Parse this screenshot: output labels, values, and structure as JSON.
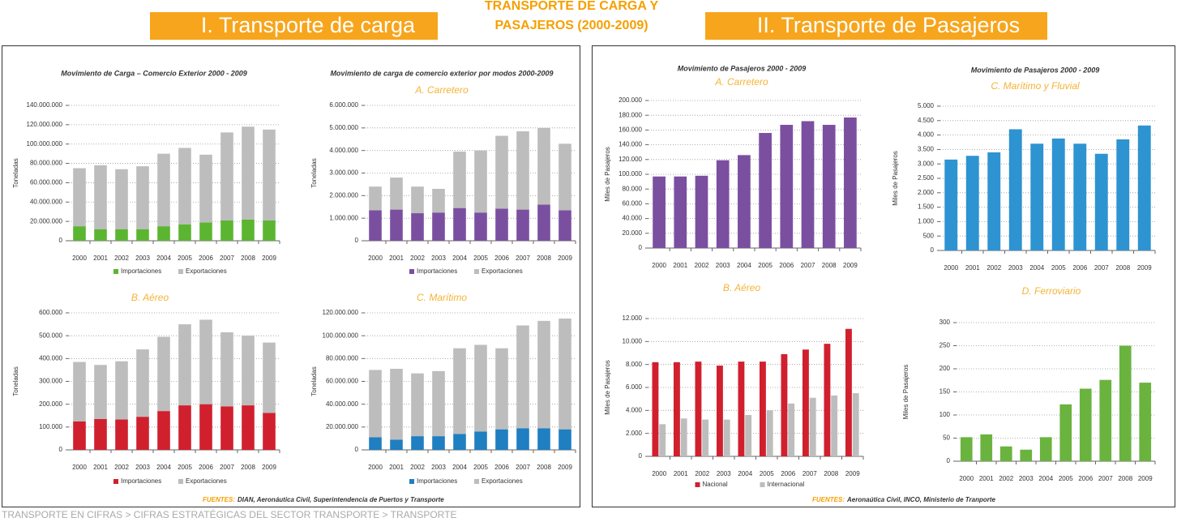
{
  "header": {
    "left": "I. Transporte de carga",
    "center_line1": "TRANSPORTE DE CARGA Y",
    "center_line2": "PASAJEROS (2000-2009)",
    "right": "II. Transporte de Pasajeros"
  },
  "sources": {
    "left": {
      "label": "FUENTES:",
      "text": "DIAN, Aeronáutica Civil, Superintendencia de Puertos y Transporte"
    },
    "right": {
      "label": "FUENTES:",
      "text": "Aeronaútica Civil, INCO, Ministerio de Tranporte"
    }
  },
  "footer": "TRANSPORTE EN CIFRAS > CIFRAS ESTRATÉGICAS DEL SECTOR TRANSPORTE > TRANSPORTE",
  "chart_data": [
    {
      "type": "bar",
      "stacked": true,
      "title": "Movimiento de Carga – Comercio Exterior 2000 - 2009",
      "ylabel": "Toneladas",
      "grid": true,
      "categories": [
        "2000",
        "2001",
        "2002",
        "2003",
        "2004",
        "2005",
        "2006",
        "2007",
        "2008",
        "2009"
      ],
      "series": [
        {
          "name": "Importaciones",
          "color": "#5cb531",
          "values": [
            15000000,
            12000000,
            12000000,
            12000000,
            15000000,
            17000000,
            19000000,
            21000000,
            22000000,
            21000000
          ]
        },
        {
          "name": "Exportaciones",
          "color": "#bdbdbd",
          "values": [
            60000000,
            66000000,
            62000000,
            65000000,
            75000000,
            79000000,
            70000000,
            91000000,
            96000000,
            94000000
          ]
        }
      ],
      "ylim": [
        0,
        140000000
      ],
      "yticks": [
        0,
        {
          "value": 20000000,
          "label": "20.000.000"
        },
        {
          "value": 40000000,
          "label": "40.000.000"
        },
        {
          "value": 60000000,
          "label": "60.000.000"
        },
        {
          "value": 80000000,
          "label": "80.000.000"
        },
        {
          "value": 100000000,
          "label": "100.000.000"
        },
        {
          "value": 120000000,
          "label": "120.000.000"
        },
        {
          "value": 140000000,
          "label": "140.000.000"
        }
      ]
    },
    {
      "type": "bar",
      "stacked": true,
      "title": "Movimiento de carga  de comercio exterior por modos 2000-2009",
      "subtitle": "A. Carretero",
      "ylabel": "Toneladas",
      "grid": true,
      "categories": [
        "2000",
        "2001",
        "2002",
        "2003",
        "2004",
        "2005",
        "2006",
        "2007",
        "2008",
        "2009"
      ],
      "series": [
        {
          "name": "Importaciones",
          "color": "#7b4fa0",
          "values": [
            1350000,
            1380000,
            1220000,
            1250000,
            1450000,
            1250000,
            1420000,
            1380000,
            1600000,
            1350000
          ]
        },
        {
          "name": "Exportaciones",
          "color": "#bdbdbd",
          "values": [
            1050000,
            1420000,
            1180000,
            1050000,
            2500000,
            2750000,
            3230000,
            3470000,
            3400000,
            2950000
          ]
        }
      ],
      "ylim": [
        0,
        6000000
      ],
      "yticks": [
        0,
        {
          "value": 1000000,
          "label": "1.000.000"
        },
        {
          "value": 2000000,
          "label": "2.000.000"
        },
        {
          "value": 3000000,
          "label": "3.000.000"
        },
        {
          "value": 4000000,
          "label": "4.000.000"
        },
        {
          "value": 5000000,
          "label": "5.000.000"
        },
        {
          "value": 6000000,
          "label": "6.000.000"
        }
      ]
    },
    {
      "type": "bar",
      "stacked": true,
      "subtitle": "B. Aéreo",
      "ylabel": "Toneladas",
      "grid": true,
      "categories": [
        "2000",
        "2001",
        "2002",
        "2003",
        "2004",
        "2005",
        "2006",
        "2007",
        "2008",
        "2009"
      ],
      "series": [
        {
          "name": "Importaciones",
          "color": "#d0202e",
          "values": [
            125000,
            135000,
            133000,
            145000,
            170000,
            195000,
            200000,
            190000,
            195000,
            162000
          ]
        },
        {
          "name": "Exportaciones",
          "color": "#bdbdbd",
          "values": [
            260000,
            237000,
            255000,
            295000,
            325000,
            355000,
            370000,
            325000,
            305000,
            308000
          ]
        }
      ],
      "ylim": [
        0,
        600000
      ],
      "yticks": [
        0,
        {
          "value": 100000,
          "label": "100.000"
        },
        {
          "value": 200000,
          "label": "200.000"
        },
        {
          "value": 300000,
          "label": "300.000"
        },
        {
          "value": 400000,
          "label": "400.000"
        },
        {
          "value": 500000,
          "label": "500.000"
        },
        {
          "value": 600000,
          "label": "600.000"
        }
      ]
    },
    {
      "type": "bar",
      "stacked": true,
      "subtitle": "C. Marítimo",
      "ylabel": "Toneladas",
      "grid": true,
      "categories": [
        "2000",
        "2001",
        "2002",
        "2003",
        "2004",
        "2005",
        "2006",
        "2007",
        "2008",
        "2009"
      ],
      "series": [
        {
          "name": "Importaciones",
          "color": "#1f7fc1",
          "values": [
            11000000,
            9000000,
            12000000,
            12000000,
            14000000,
            16000000,
            18000000,
            19000000,
            19000000,
            18000000
          ]
        },
        {
          "name": "Exportaciones",
          "color": "#bdbdbd",
          "values": [
            59000000,
            62000000,
            55000000,
            57000000,
            75000000,
            76000000,
            71000000,
            90000000,
            94000000,
            97000000
          ]
        }
      ],
      "ylim": [
        0,
        120000000
      ],
      "yticks": [
        0,
        {
          "value": 20000000,
          "label": "20.000.000"
        },
        {
          "value": 40000000,
          "label": "40.000.000"
        },
        {
          "value": 60000000,
          "label": "60.000.000"
        },
        {
          "value": 80000000,
          "label": "80.000.000"
        },
        {
          "value": 100000000,
          "label": "100.000.000"
        },
        {
          "value": 120000000,
          "label": "120.000.000"
        }
      ]
    },
    {
      "type": "bar",
      "title": "Movimiento de Pasajeros 2000 - 2009",
      "subtitle": "A. Carretero",
      "ylabel": "Miles de Pasajeros",
      "grid": true,
      "color": "#7b4fa0",
      "categories": [
        "2000",
        "2001",
        "2002",
        "2003",
        "2004",
        "2005",
        "2006",
        "2007",
        "2008",
        "2009"
      ],
      "values": [
        97000,
        97000,
        98000,
        119000,
        126000,
        156000,
        167000,
        172000,
        167000,
        177000
      ],
      "ylim": [
        0,
        200000
      ],
      "yticks": [
        0,
        {
          "value": 20000,
          "label": "20.000"
        },
        {
          "value": 40000,
          "label": "40.000"
        },
        {
          "value": 60000,
          "label": "60.000"
        },
        {
          "value": 80000,
          "label": "80.000"
        },
        {
          "value": 100000,
          "label": "100.000"
        },
        {
          "value": 120000,
          "label": "120.000"
        },
        {
          "value": 140000,
          "label": "140.000"
        },
        {
          "value": 160000,
          "label": "160.000"
        },
        {
          "value": 180000,
          "label": "180.000"
        },
        {
          "value": 200000,
          "label": "200.000"
        }
      ]
    },
    {
      "type": "bar",
      "title": "Movimiento de Pasajeros 2000 - 2009",
      "subtitle": "C. Marítimo y Fluvial",
      "ylabel": "Miles de Pasajeros",
      "grid": true,
      "color": "#2e93d1",
      "categories": [
        "2000",
        "2001",
        "2002",
        "2003",
        "2004",
        "2005",
        "2006",
        "2007",
        "2008",
        "2009"
      ],
      "values": [
        3150,
        3280,
        3400,
        4200,
        3700,
        3880,
        3700,
        3350,
        3850,
        4330
      ],
      "ylim": [
        0,
        5000
      ],
      "yticks": [
        0,
        500,
        {
          "value": 1000,
          "label": "1.000"
        },
        {
          "value": 1500,
          "label": "1.500"
        },
        {
          "value": 2000,
          "label": "2.000"
        },
        {
          "value": 2500,
          "label": "2.500"
        },
        {
          "value": 3000,
          "label": "3.000"
        },
        {
          "value": 3500,
          "label": "3.500"
        },
        {
          "value": 4000,
          "label": "4.000"
        },
        {
          "value": 4500,
          "label": "4.500"
        },
        {
          "value": 5000,
          "label": "5.000"
        }
      ]
    },
    {
      "type": "bar",
      "subtitle": "B. Aéreo",
      "ylabel": "Miles de Pasajeros",
      "grid": true,
      "categories": [
        "2000",
        "2001",
        "2002",
        "2003",
        "2004",
        "2005",
        "2006",
        "2007",
        "2008",
        "2009"
      ],
      "series": [
        {
          "name": "Nacional",
          "color": "#d0202e",
          "values": [
            8200,
            8200,
            8250,
            7900,
            8250,
            8250,
            8900,
            9300,
            9800,
            11100
          ]
        },
        {
          "name": "Internacional",
          "color": "#bdbdbd",
          "values": [
            2800,
            3300,
            3200,
            3200,
            3600,
            4000,
            4600,
            5100,
            5300,
            5500
          ]
        }
      ],
      "ylim": [
        0,
        12000
      ],
      "yticks": [
        0,
        {
          "value": 2000,
          "label": "2.000"
        },
        {
          "value": 4000,
          "label": "4.000"
        },
        {
          "value": 6000,
          "label": "6.000"
        },
        {
          "value": 8000,
          "label": "8.000"
        },
        {
          "value": 10000,
          "label": "10.000"
        },
        {
          "value": 12000,
          "label": "12.000"
        }
      ]
    },
    {
      "type": "bar",
      "subtitle": "D. Ferroviario",
      "ylabel": "Miles de Pasajeros",
      "grid": true,
      "color": "#6ab33f",
      "categories": [
        "2000",
        "2001",
        "2002",
        "2003",
        "2004",
        "2005",
        "2006",
        "2007",
        "2008",
        "2009"
      ],
      "values": [
        52,
        58,
        32,
        25,
        52,
        123,
        157,
        176,
        250,
        170
      ],
      "ylim": [
        0,
        300
      ],
      "yticks": [
        0,
        50,
        100,
        150,
        200,
        250,
        300
      ]
    }
  ]
}
